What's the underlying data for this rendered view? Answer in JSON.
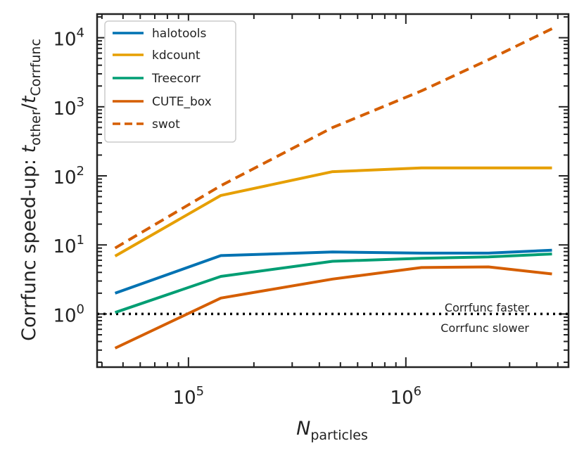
{
  "chart_data": {
    "type": "line",
    "xscale": "log",
    "yscale": "log",
    "xlim": [
      38000,
      5600000
    ],
    "ylim": [
      0.17,
      22000
    ],
    "xlabel_main": "N",
    "xlabel_sub": "particles",
    "ylabel_prefix": "Corrfunc speed-up: ",
    "ylabel_t": "t",
    "ylabel_sub_other": "other",
    "ylabel_slash": "/",
    "ylabel_sub_corrfunc": "Corrfunc",
    "xticks": [
      {
        "value": 100000,
        "base": "10",
        "exp": "5"
      },
      {
        "value": 1000000,
        "base": "10",
        "exp": "6"
      }
    ],
    "yticks": [
      {
        "value": 1,
        "base": "10",
        "exp": "0"
      },
      {
        "value": 10,
        "base": "10",
        "exp": "1"
      },
      {
        "value": 100,
        "base": "10",
        "exp": "2"
      },
      {
        "value": 1000,
        "base": "10",
        "exp": "3"
      },
      {
        "value": 10000,
        "base": "10",
        "exp": "4"
      }
    ],
    "x": [
      46000,
      141000,
      460000,
      1180000,
      2400000,
      4700000
    ],
    "series": [
      {
        "name": "halotools",
        "color": "#0072b2",
        "dash": "solid",
        "values": [
          2.0,
          7.0,
          7.9,
          7.6,
          7.6,
          8.4
        ]
      },
      {
        "name": "kdcount",
        "color": "#e69f00",
        "dash": "solid",
        "values": [
          6.9,
          52,
          115,
          130,
          130,
          130
        ]
      },
      {
        "name": "Treecorr",
        "color": "#009e73",
        "dash": "solid",
        "values": [
          1.05,
          3.5,
          5.8,
          6.4,
          6.7,
          7.4
        ]
      },
      {
        "name": "CUTE_box",
        "color": "#d55e00",
        "dash": "solid",
        "values": [
          0.32,
          1.7,
          3.2,
          4.7,
          4.8,
          3.8
        ]
      },
      {
        "name": "swot",
        "color": "#d55e00",
        "dash": "dashed",
        "values": [
          9.0,
          72,
          500,
          1700,
          4800,
          13500
        ]
      }
    ],
    "reference_line": {
      "y": 1,
      "style": "dotted",
      "color": "#000000"
    },
    "annotations": [
      {
        "id": "faster",
        "text": "Corrfunc faster"
      },
      {
        "id": "slower",
        "text": "Corrfunc slower"
      }
    ],
    "legend_location": "upper-left",
    "grid": false
  }
}
